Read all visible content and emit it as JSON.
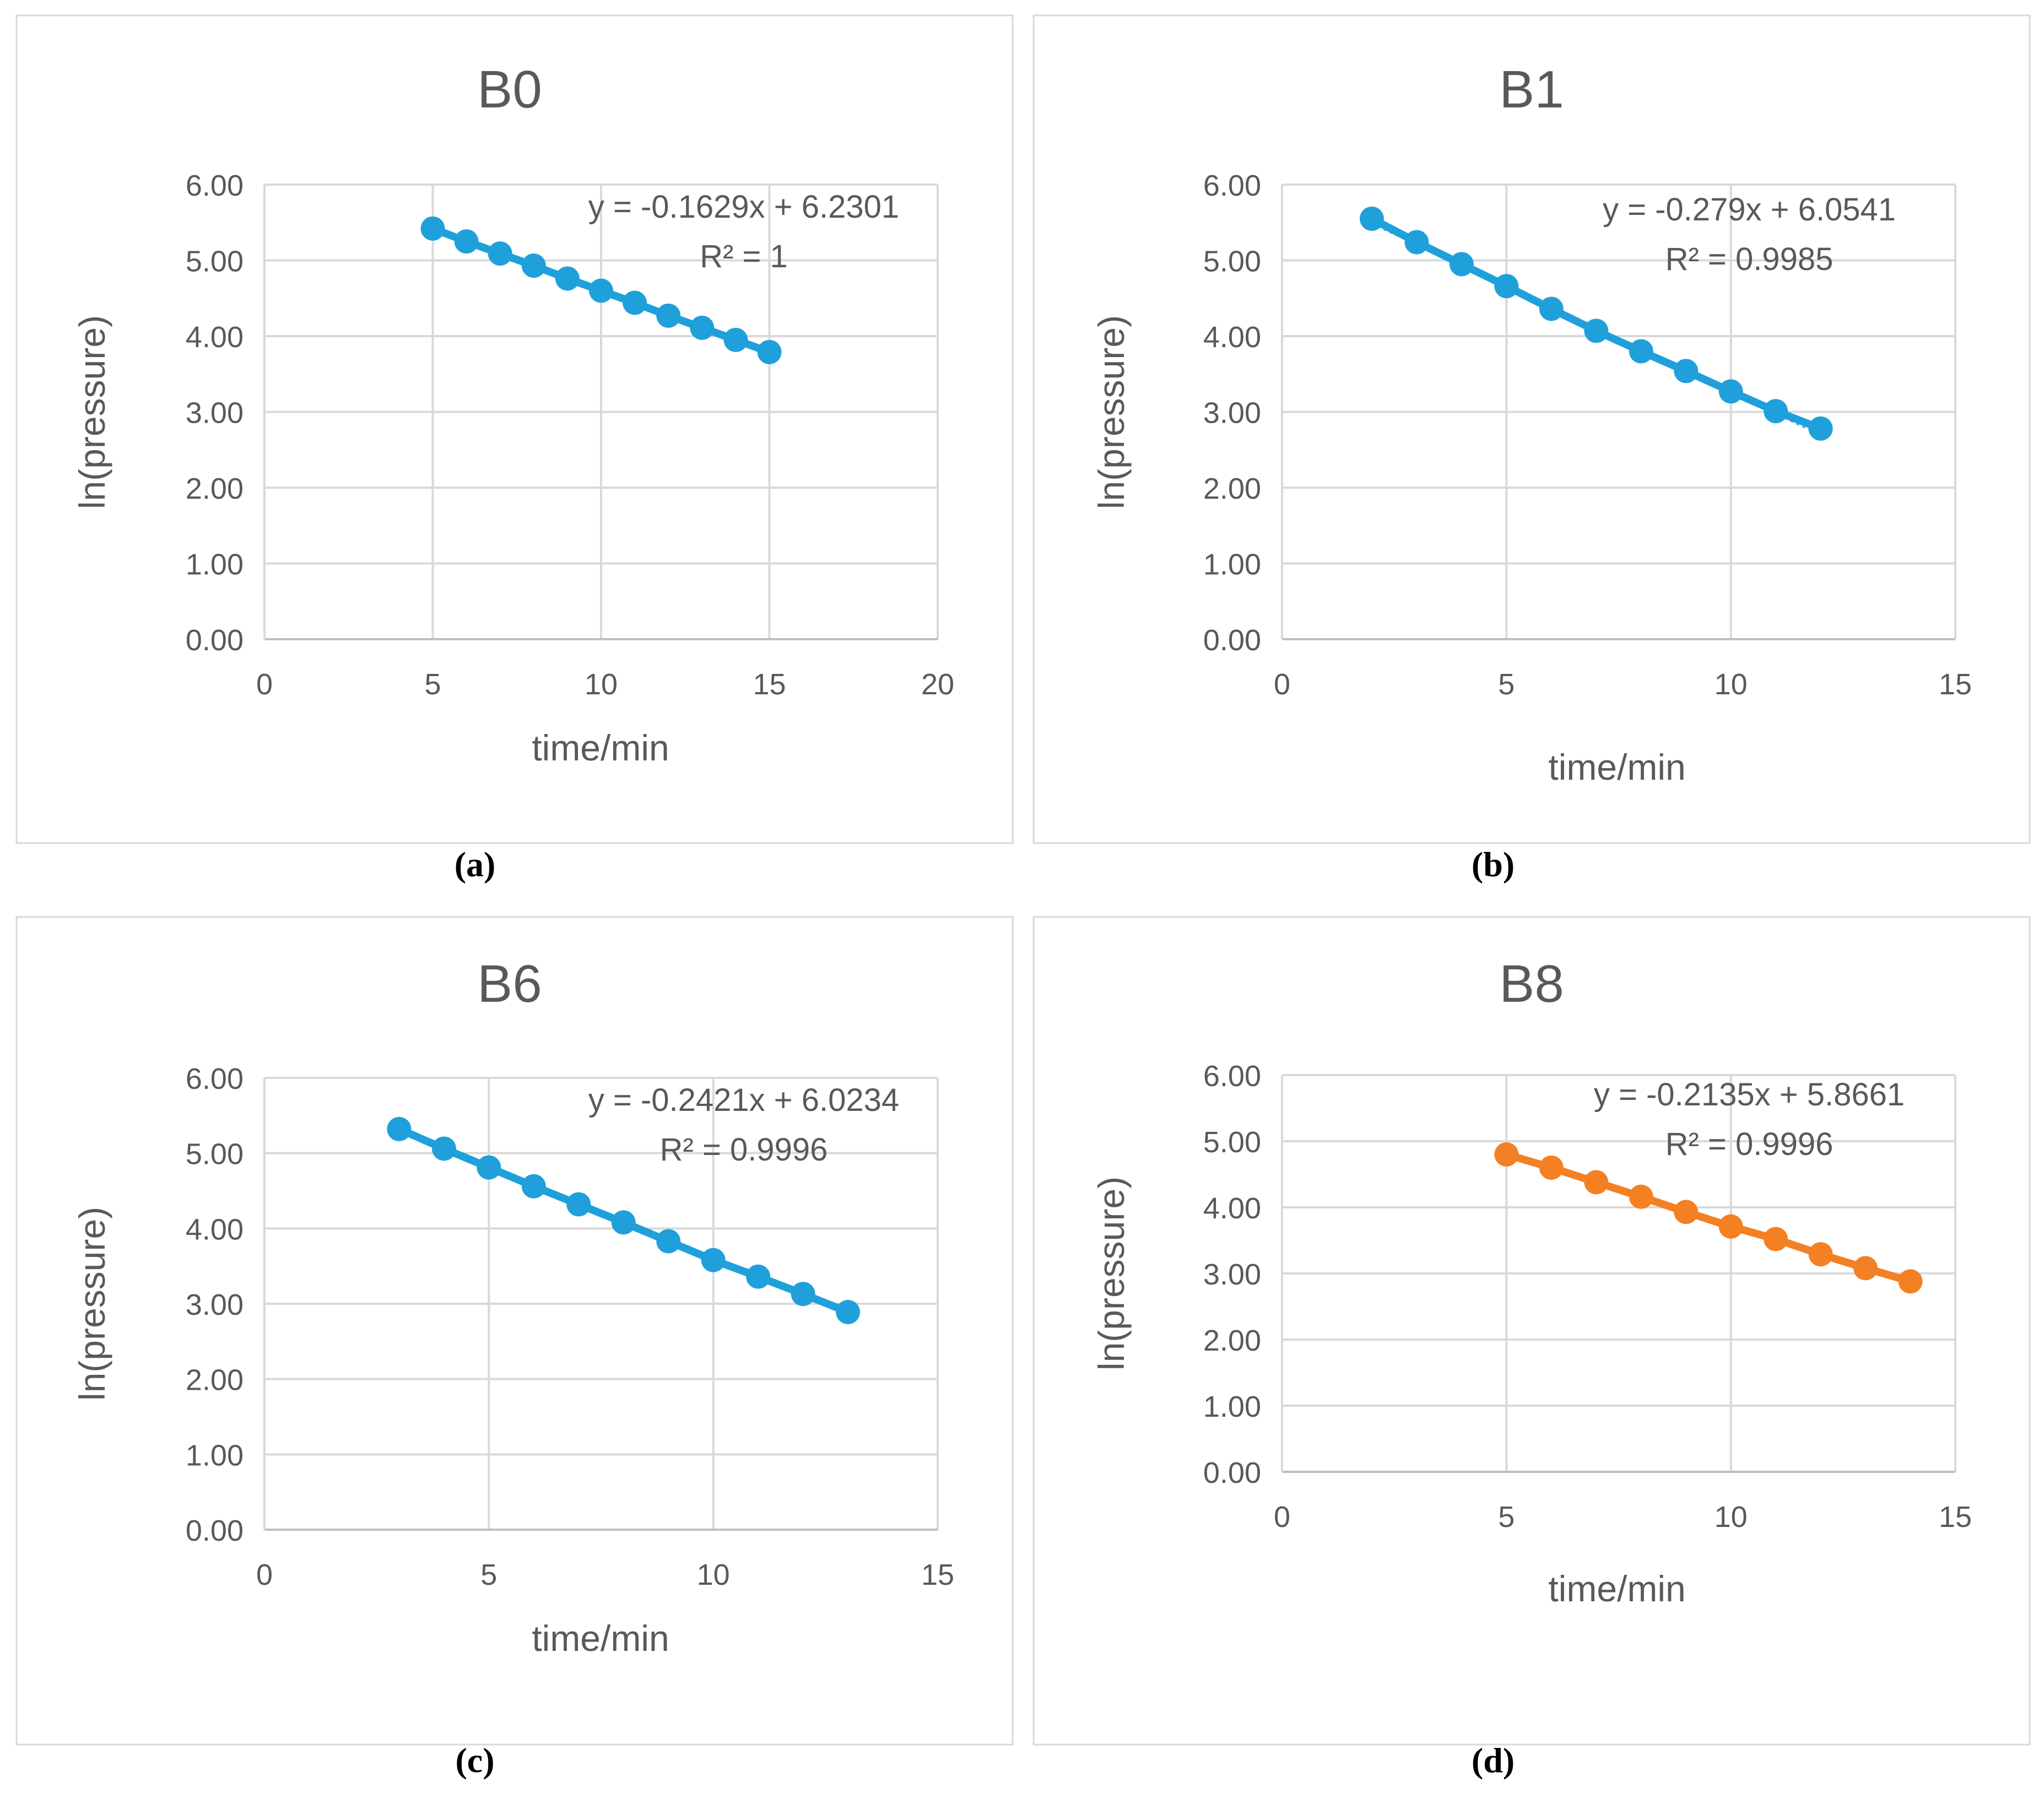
{
  "chart_data": [
    {
      "type": "scatter",
      "title": "B0",
      "caption": "(a)",
      "xlabel": "time/min",
      "ylabel": "ln(pressure)",
      "xlim": [
        0,
        20
      ],
      "ylim": [
        0,
        6
      ],
      "xticks": [
        0,
        5,
        10,
        15,
        20
      ],
      "yticks": [
        "0.00",
        "1.00",
        "2.00",
        "3.00",
        "4.00",
        "5.00",
        "6.00"
      ],
      "grid": true,
      "color": "#1FA0DB",
      "trendline": {
        "slope": -0.1629,
        "intercept": 6.2301,
        "equation": "y = -0.1629x + 6.2301",
        "r2": "R² = 1"
      },
      "series": [
        {
          "name": "B0",
          "x": [
            5,
            6,
            7,
            8,
            9,
            10,
            11,
            12,
            13,
            14,
            15
          ],
          "y": [
            5.42,
            5.25,
            5.09,
            4.93,
            4.76,
            4.6,
            4.44,
            4.27,
            4.11,
            3.95,
            3.79
          ]
        }
      ]
    },
    {
      "type": "scatter",
      "title": "B1",
      "caption": "(b)",
      "xlabel": "time/min",
      "ylabel": "ln(pressure)",
      "xlim": [
        0,
        15
      ],
      "ylim": [
        0,
        6
      ],
      "xticks": [
        0,
        5,
        10,
        15
      ],
      "yticks": [
        "0.00",
        "1.00",
        "2.00",
        "3.00",
        "4.00",
        "5.00",
        "6.00"
      ],
      "grid": true,
      "color": "#1FA0DB",
      "trendline": {
        "slope": -0.279,
        "intercept": 6.0541,
        "equation": "y = -0.279x + 6.0541",
        "r2": "R² = 0.9985"
      },
      "series": [
        {
          "name": "B1",
          "x": [
            2,
            3,
            4,
            5,
            6,
            7,
            8,
            9,
            10,
            11,
            12
          ],
          "y": [
            5.55,
            5.24,
            4.95,
            4.66,
            4.36,
            4.07,
            3.8,
            3.54,
            3.27,
            3.01,
            2.78
          ]
        }
      ]
    },
    {
      "type": "scatter",
      "title": "B6",
      "caption": "(c)",
      "xlabel": "time/min",
      "ylabel": "ln(pressure)",
      "xlim": [
        0,
        15
      ],
      "ylim": [
        0,
        6
      ],
      "xticks": [
        0,
        5,
        10,
        15
      ],
      "yticks": [
        "0.00",
        "1.00",
        "2.00",
        "3.00",
        "4.00",
        "5.00",
        "6.00"
      ],
      "grid": true,
      "color": "#1FA0DB",
      "trendline": {
        "slope": -0.2421,
        "intercept": 6.0234,
        "equation": "y = -0.2421x + 6.0234",
        "r2": "R² = 0.9996"
      },
      "series": [
        {
          "name": "B6",
          "x": [
            3,
            4,
            5,
            6,
            7,
            8,
            9,
            10,
            11,
            12,
            13
          ],
          "y": [
            5.32,
            5.06,
            4.81,
            4.56,
            4.32,
            4.08,
            3.83,
            3.58,
            3.36,
            3.13,
            2.89
          ]
        }
      ]
    },
    {
      "type": "scatter",
      "title": "B8",
      "caption": "(d)",
      "xlabel": "time/min",
      "ylabel": "ln(pressure)",
      "xlim": [
        0,
        15
      ],
      "ylim": [
        0,
        6
      ],
      "xticks": [
        0,
        5,
        10,
        15
      ],
      "yticks": [
        "0.00",
        "1.00",
        "2.00",
        "3.00",
        "4.00",
        "5.00",
        "6.00"
      ],
      "grid": true,
      "color": "#F48024",
      "trendline": {
        "slope": -0.2135,
        "intercept": 5.8661,
        "equation": "y = -0.2135x + 5.8661",
        "r2": "R² = 0.9996"
      },
      "series": [
        {
          "name": "B8",
          "x": [
            5,
            6,
            7,
            8,
            9,
            10,
            11,
            12,
            13,
            14
          ],
          "y": [
            4.8,
            4.6,
            4.38,
            4.16,
            3.93,
            3.71,
            3.52,
            3.29,
            3.08,
            2.88
          ]
        }
      ]
    }
  ]
}
